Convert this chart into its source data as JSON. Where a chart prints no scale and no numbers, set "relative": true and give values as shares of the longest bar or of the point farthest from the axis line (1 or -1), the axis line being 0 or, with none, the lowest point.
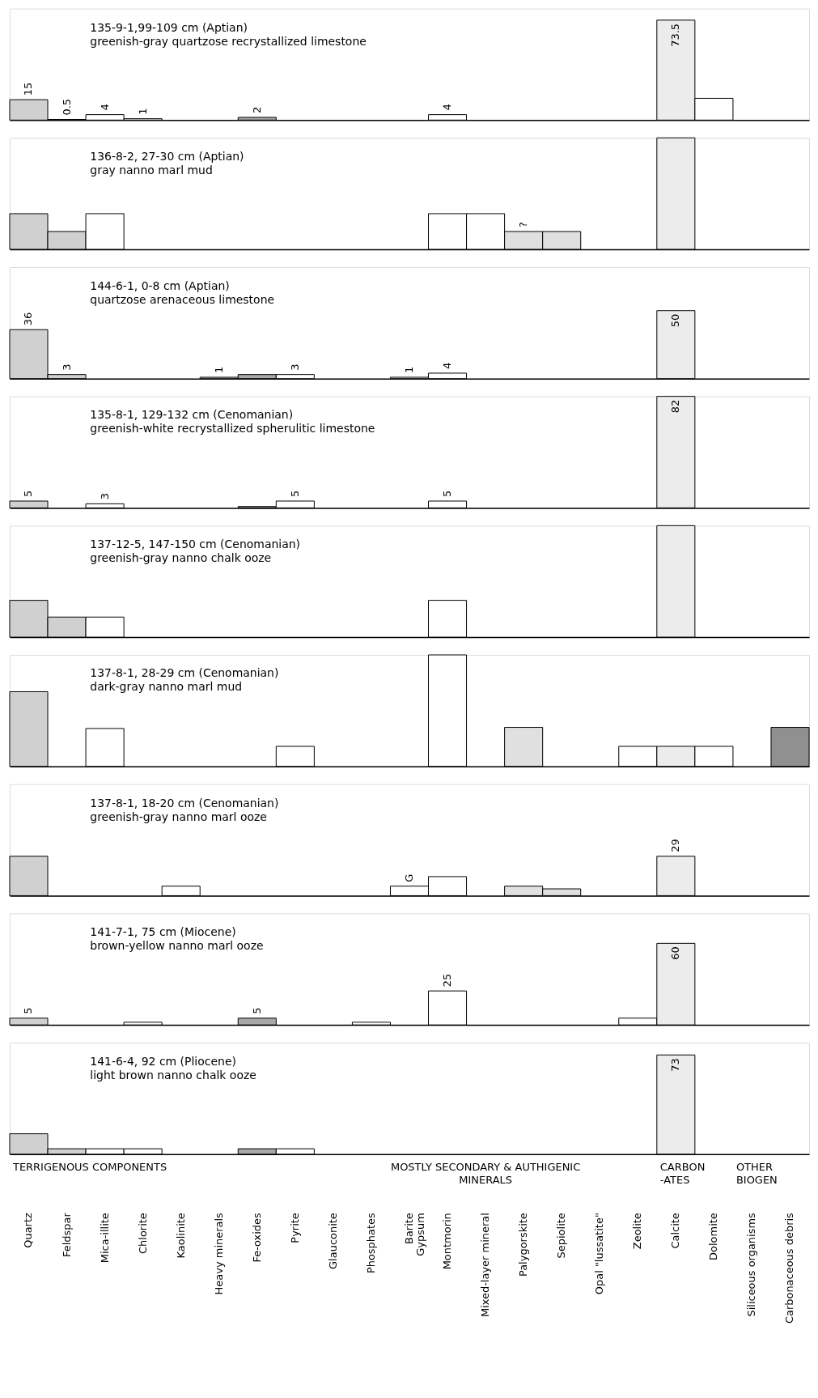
{
  "chart_data": [
    {
      "type": "bar",
      "title": "135-9-1,99-109 cm  (Aptian)",
      "subtitle": "greenish-gray quartzose recrystallized limestone",
      "tick_labels": false,
      "grid": false,
      "categories": [
        "Quartz",
        "Feldspar",
        "Mica-illite",
        "Chlorite",
        "Kaolinite",
        "Heavy minerals",
        "Fe-oxides",
        "Pyrite",
        "Glauconite",
        "Phosphates",
        "Barite\nGypsum",
        "Montmorin",
        "Mixed-layer mineral",
        "Palygorskite",
        "Sepiolite",
        "Opal \"lussatite\"",
        "Zeolite",
        "Calcite",
        "Dolomite",
        "Siliceous organisms",
        "Carbonaceous debris"
      ],
      "colors": [
        "#d0d0d0",
        "#d0d0d0",
        "#ffffff",
        "#ffffff",
        "#ffffff",
        "#d8d8d8",
        "#a8a8a8",
        "#ffffff",
        "#ffffff",
        "#ffffff",
        "#ffffff",
        "#ffffff",
        "#ffffff",
        "#e0e0e0",
        "#e0e0e0",
        "#ffffff",
        "#ffffff",
        "#ececec",
        "#ffffff",
        "#ffffff",
        "#909090"
      ],
      "values": [
        15,
        0.5,
        4,
        1,
        null,
        null,
        2,
        null,
        null,
        null,
        null,
        4,
        null,
        null,
        null,
        null,
        null,
        73.5,
        16,
        null,
        null
      ],
      "value_labels": [
        "15",
        "0.5",
        "4",
        "1",
        null,
        null,
        "2",
        null,
        null,
        null,
        null,
        "4",
        null,
        null,
        null,
        null,
        null,
        "73.5",
        null,
        null,
        null
      ]
    },
    {
      "type": "bar",
      "relative": true,
      "title": "136-8-2, 27-30 cm (Aptian)",
      "subtitle": "gray nanno marl mud",
      "tick_labels": false,
      "grid": false,
      "categories": [
        "Quartz",
        "Feldspar",
        "Mica-illite",
        "Chlorite",
        "Kaolinite",
        "Heavy minerals",
        "Fe-oxides",
        "Pyrite",
        "Glauconite",
        "Phosphates",
        "Barite\nGypsum",
        "Montmorin",
        "Mixed-layer mineral",
        "Palygorskite",
        "Sepiolite",
        "Opal \"lussatite\"",
        "Zeolite",
        "Calcite",
        "Dolomite",
        "Siliceous organisms",
        "Carbonaceous debris"
      ],
      "colors": [
        "#d0d0d0",
        "#d0d0d0",
        "#ffffff",
        "#ffffff",
        "#ffffff",
        "#d8d8d8",
        "#a8a8a8",
        "#ffffff",
        "#ffffff",
        "#ffffff",
        "#ffffff",
        "#ffffff",
        "#ffffff",
        "#e0e0e0",
        "#e0e0e0",
        "#ffffff",
        "#ffffff",
        "#ececec",
        "#ffffff",
        "#ffffff",
        "#909090"
      ],
      "values": [
        0.32,
        0.16,
        0.32,
        null,
        null,
        null,
        null,
        null,
        null,
        null,
        null,
        0.32,
        0.32,
        0.16,
        0.16,
        null,
        null,
        1,
        null,
        null,
        null
      ],
      "annotations": [
        {
          "text": "?",
          "x": "Palygorskite",
          "y": 0.16
        }
      ]
    },
    {
      "type": "bar",
      "title": "144-6-1, 0-8 cm  (Aptian)",
      "subtitle": "quartzose arenaceous limestone",
      "tick_labels": false,
      "grid": false,
      "categories": [
        "Quartz",
        "Feldspar",
        "Mica-illite",
        "Chlorite",
        "Kaolinite",
        "Heavy minerals",
        "Fe-oxides",
        "Pyrite",
        "Glauconite",
        "Phosphates",
        "Barite\nGypsum",
        "Montmorin",
        "Mixed-layer mineral",
        "Palygorskite",
        "Sepiolite",
        "Opal \"lussatite\"",
        "Zeolite",
        "Calcite",
        "Dolomite",
        "Siliceous organisms",
        "Carbonaceous debris"
      ],
      "colors": [
        "#d0d0d0",
        "#d0d0d0",
        "#ffffff",
        "#ffffff",
        "#ffffff",
        "#d8d8d8",
        "#a8a8a8",
        "#ffffff",
        "#ffffff",
        "#ffffff",
        "#ffffff",
        "#ffffff",
        "#ffffff",
        "#e0e0e0",
        "#e0e0e0",
        "#ffffff",
        "#ffffff",
        "#ececec",
        "#ffffff",
        "#ffffff",
        "#909090"
      ],
      "values": [
        36,
        3,
        null,
        null,
        null,
        1,
        3,
        3,
        null,
        null,
        1,
        4,
        null,
        null,
        null,
        null,
        null,
        50,
        null,
        null,
        null
      ],
      "value_labels": [
        "36",
        "3",
        null,
        null,
        null,
        "1",
        null,
        "3",
        null,
        null,
        "1",
        "4",
        null,
        null,
        null,
        null,
        null,
        "50",
        null,
        null,
        null
      ]
    },
    {
      "type": "bar",
      "title": "135-8-1, 129-132 cm  (Cenomanian)",
      "subtitle": "greenish-white recrystallized spherulitic limestone",
      "tick_labels": false,
      "grid": false,
      "categories": [
        "Quartz",
        "Feldspar",
        "Mica-illite",
        "Chlorite",
        "Kaolinite",
        "Heavy minerals",
        "Fe-oxides",
        "Pyrite",
        "Glauconite",
        "Phosphates",
        "Barite\nGypsum",
        "Montmorin",
        "Mixed-layer mineral",
        "Palygorskite",
        "Sepiolite",
        "Opal \"lussatite\"",
        "Zeolite",
        "Calcite",
        "Dolomite",
        "Siliceous organisms",
        "Carbonaceous debris"
      ],
      "colors": [
        "#d0d0d0",
        "#d0d0d0",
        "#ffffff",
        "#ffffff",
        "#ffffff",
        "#d8d8d8",
        "#a8a8a8",
        "#ffffff",
        "#ffffff",
        "#ffffff",
        "#ffffff",
        "#ffffff",
        "#ffffff",
        "#e0e0e0",
        "#e0e0e0",
        "#ffffff",
        "#ffffff",
        "#ececec",
        "#ffffff",
        "#ffffff",
        "#909090"
      ],
      "values": [
        5,
        null,
        3,
        null,
        null,
        null,
        1,
        5,
        null,
        null,
        null,
        5,
        null,
        null,
        null,
        null,
        null,
        82,
        null,
        null,
        null
      ],
      "value_labels": [
        "5",
        null,
        "3",
        null,
        null,
        null,
        null,
        "5",
        null,
        null,
        null,
        "5",
        null,
        null,
        null,
        null,
        null,
        "82",
        null,
        null,
        null
      ]
    },
    {
      "type": "bar",
      "relative": true,
      "title": "137-12-5, 147-150 cm  (Cenomanian)",
      "subtitle": "greenish-gray nanno chalk ooze",
      "tick_labels": false,
      "grid": false,
      "categories": [
        "Quartz",
        "Feldspar",
        "Mica-illite",
        "Chlorite",
        "Kaolinite",
        "Heavy minerals",
        "Fe-oxides",
        "Pyrite",
        "Glauconite",
        "Phosphates",
        "Barite\nGypsum",
        "Montmorin",
        "Mixed-layer mineral",
        "Palygorskite",
        "Sepiolite",
        "Opal \"lussatite\"",
        "Zeolite",
        "Calcite",
        "Dolomite",
        "Siliceous organisms",
        "Carbonaceous debris"
      ],
      "colors": [
        "#d0d0d0",
        "#d0d0d0",
        "#ffffff",
        "#ffffff",
        "#ffffff",
        "#d8d8d8",
        "#a8a8a8",
        "#ffffff",
        "#ffffff",
        "#ffffff",
        "#ffffff",
        "#ffffff",
        "#ffffff",
        "#e0e0e0",
        "#e0e0e0",
        "#ffffff",
        "#ffffff",
        "#ececec",
        "#ffffff",
        "#ffffff",
        "#909090"
      ],
      "values": [
        0.33,
        0.18,
        0.18,
        null,
        null,
        null,
        null,
        null,
        null,
        null,
        null,
        0.33,
        null,
        null,
        null,
        null,
        null,
        1,
        null,
        null,
        null
      ]
    },
    {
      "type": "bar",
      "relative": true,
      "title": "137-8-1, 28-29 cm  (Cenomanian)",
      "subtitle": "dark-gray nanno marl mud",
      "tick_labels": false,
      "grid": false,
      "categories": [
        "Quartz",
        "Feldspar",
        "Mica-illite",
        "Chlorite",
        "Kaolinite",
        "Heavy minerals",
        "Fe-oxides",
        "Pyrite",
        "Glauconite",
        "Phosphates",
        "Barite\nGypsum",
        "Montmorin",
        "Mixed-layer mineral",
        "Palygorskite",
        "Sepiolite",
        "Opal \"lussatite\"",
        "Zeolite",
        "Calcite",
        "Dolomite",
        "Siliceous organisms",
        "Carbonaceous debris"
      ],
      "colors": [
        "#d0d0d0",
        "#d0d0d0",
        "#ffffff",
        "#ffffff",
        "#ffffff",
        "#d8d8d8",
        "#a8a8a8",
        "#ffffff",
        "#ffffff",
        "#ffffff",
        "#ffffff",
        "#ffffff",
        "#ffffff",
        "#e0e0e0",
        "#e0e0e0",
        "#ffffff",
        "#ffffff",
        "#ececec",
        "#ffffff",
        "#ffffff",
        "#909090"
      ],
      "values": [
        0.67,
        null,
        0.34,
        null,
        null,
        null,
        null,
        0.18,
        null,
        null,
        null,
        1,
        null,
        0.35,
        null,
        null,
        0.18,
        0.18,
        0.18,
        null,
        0.35
      ]
    },
    {
      "type": "bar",
      "title": "137-8-1, 18-20 cm  (Cenomanian)",
      "subtitle": "greenish-gray nanno marl ooze",
      "tick_labels": false,
      "grid": false,
      "categories": [
        "Quartz",
        "Feldspar",
        "Mica-illite",
        "Chlorite",
        "Kaolinite",
        "Heavy minerals",
        "Fe-oxides",
        "Pyrite",
        "Glauconite",
        "Phosphates",
        "Barite\nGypsum",
        "Montmorin",
        "Mixed-layer mineral",
        "Palygorskite",
        "Sepiolite",
        "Opal \"lussatite\"",
        "Zeolite",
        "Calcite",
        "Dolomite",
        "Siliceous organisms",
        "Carbonaceous debris"
      ],
      "colors": [
        "#d0d0d0",
        "#d0d0d0",
        "#ffffff",
        "#ffffff",
        "#ffffff",
        "#d8d8d8",
        "#a8a8a8",
        "#ffffff",
        "#ffffff",
        "#ffffff",
        "#ffffff",
        "#ffffff",
        "#ffffff",
        "#e0e0e0",
        "#e0e0e0",
        "#ffffff",
        "#ffffff",
        "#ececec",
        "#ffffff",
        "#ffffff",
        "#909090"
      ],
      "values": [
        29,
        null,
        null,
        null,
        7,
        null,
        null,
        null,
        null,
        null,
        7,
        14,
        null,
        7,
        5,
        null,
        null,
        29,
        null,
        null,
        null
      ],
      "value_labels": [
        null,
        null,
        null,
        null,
        null,
        null,
        null,
        null,
        null,
        null,
        null,
        null,
        null,
        null,
        null,
        null,
        null,
        "29",
        null,
        null,
        null
      ],
      "annotations": [
        {
          "text": "G",
          "x": "Barite\nGypsum",
          "y": 7
        }
      ]
    },
    {
      "type": "bar",
      "title": "141-7-1, 75 cm  (Miocene)",
      "subtitle": "brown-yellow nanno marl ooze",
      "tick_labels": false,
      "grid": false,
      "categories": [
        "Quartz",
        "Feldspar",
        "Mica-illite",
        "Chlorite",
        "Kaolinite",
        "Heavy minerals",
        "Fe-oxides",
        "Pyrite",
        "Glauconite",
        "Phosphates",
        "Barite\nGypsum",
        "Montmorin",
        "Mixed-layer mineral",
        "Palygorskite",
        "Sepiolite",
        "Opal \"lussatite\"",
        "Zeolite",
        "Calcite",
        "Dolomite",
        "Siliceous organisms",
        "Carbonaceous debris"
      ],
      "colors": [
        "#d0d0d0",
        "#d0d0d0",
        "#ffffff",
        "#ffffff",
        "#ffffff",
        "#d8d8d8",
        "#a8a8a8",
        "#ffffff",
        "#ffffff",
        "#ffffff",
        "#ffffff",
        "#ffffff",
        "#ffffff",
        "#e0e0e0",
        "#e0e0e0",
        "#ffffff",
        "#ffffff",
        "#ececec",
        "#ffffff",
        "#ffffff",
        "#909090"
      ],
      "values": [
        5,
        null,
        null,
        2,
        null,
        null,
        5,
        null,
        null,
        2,
        null,
        25,
        null,
        null,
        null,
        null,
        5,
        60,
        null,
        null,
        null
      ],
      "value_labels": [
        "5",
        null,
        null,
        null,
        null,
        null,
        "5",
        null,
        null,
        null,
        null,
        "25",
        null,
        null,
        null,
        null,
        null,
        "60",
        null,
        null,
        null
      ]
    },
    {
      "type": "bar",
      "title": "141-6-4, 92 cm  (Pliocene)",
      "subtitle": "light brown nanno chalk ooze",
      "tick_labels": "x",
      "grid": false,
      "categories": [
        "Quartz",
        "Feldspar",
        "Mica-illite",
        "Chlorite",
        "Kaolinite",
        "Heavy minerals",
        "Fe-oxides",
        "Pyrite",
        "Glauconite",
        "Phosphates",
        "Barite\nGypsum",
        "Montmorin",
        "Mixed-layer mineral",
        "Palygorskite",
        "Sepiolite",
        "Opal \"lussatite\"",
        "Zeolite",
        "Calcite",
        "Dolomite",
        "Siliceous organisms",
        "Carbonaceous debris"
      ],
      "colors": [
        "#d0d0d0",
        "#d0d0d0",
        "#ffffff",
        "#ffffff",
        "#ffffff",
        "#d8d8d8",
        "#a8a8a8",
        "#ffffff",
        "#ffffff",
        "#ffffff",
        "#ffffff",
        "#ffffff",
        "#ffffff",
        "#e0e0e0",
        "#e0e0e0",
        "#ffffff",
        "#ffffff",
        "#ececec",
        "#ffffff",
        "#ffffff",
        "#909090"
      ],
      "values": [
        15,
        4,
        4,
        4,
        null,
        null,
        4,
        4,
        null,
        null,
        null,
        null,
        null,
        null,
        null,
        null,
        null,
        73,
        null,
        null,
        null
      ],
      "value_labels": [
        null,
        null,
        null,
        null,
        null,
        null,
        null,
        null,
        null,
        null,
        null,
        null,
        null,
        null,
        null,
        null,
        null,
        "73",
        null,
        null,
        null
      ],
      "annotations": [
        "TERRIGENOUS COMPONENTS",
        "MOSTLY SECONDARY & AUTHIGENIC\nMINERALS",
        "CARBON\n-ATES",
        "OTHER\nBIOGEN"
      ]
    }
  ]
}
